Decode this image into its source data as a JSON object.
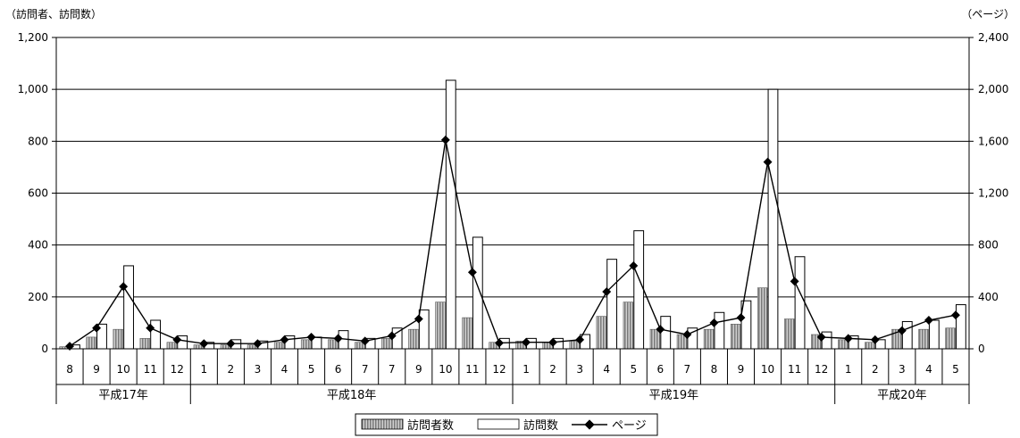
{
  "chart_data": {
    "type": "bar",
    "left_axis": {
      "label": "（訪問者、訪問数）",
      "ylim": [
        0,
        1200
      ],
      "ticks": [
        "0",
        "200",
        "400",
        "600",
        "800",
        "1,000",
        "1,200"
      ],
      "tick_values": [
        0,
        200,
        400,
        600,
        800,
        1000,
        1200
      ]
    },
    "right_axis": {
      "label": "（ページ）",
      "ylim": [
        0,
        2400
      ],
      "ticks": [
        "0",
        "400",
        "800",
        "1,200",
        "1,600",
        "2,000",
        "2,400"
      ],
      "tick_values": [
        0,
        400,
        800,
        1200,
        1600,
        2000,
        2400
      ]
    },
    "grid": true,
    "categories": [
      "8",
      "9",
      "10",
      "11",
      "12",
      "1",
      "2",
      "3",
      "4",
      "5",
      "6",
      "7",
      "7",
      "9",
      "10",
      "11",
      "12",
      "1",
      "2",
      "3",
      "4",
      "5",
      "6",
      "7",
      "8",
      "9",
      "10",
      "11",
      "12",
      "1",
      "2",
      "3",
      "4",
      "5"
    ],
    "groups": [
      {
        "label": "平成17年",
        "count": 5
      },
      {
        "label": "平成18年",
        "count": 12
      },
      {
        "label": "平成19年",
        "count": 12
      },
      {
        "label": "平成20年",
        "count": 5
      }
    ],
    "series": [
      {
        "name": "訪問者数",
        "kind": "bar",
        "axis": "left",
        "color": "#9a9a9a",
        "values": [
          8,
          45,
          75,
          40,
          25,
          15,
          15,
          15,
          25,
          35,
          35,
          25,
          40,
          75,
          180,
          120,
          25,
          30,
          25,
          30,
          125,
          180,
          75,
          55,
          75,
          95,
          235,
          115,
          55,
          35,
          25,
          75,
          75,
          80
        ]
      },
      {
        "name": "訪問数",
        "kind": "bar",
        "axis": "left",
        "color": "#ffffff",
        "values": [
          15,
          95,
          320,
          110,
          50,
          25,
          35,
          30,
          50,
          45,
          70,
          40,
          80,
          150,
          1035,
          430,
          40,
          40,
          40,
          55,
          345,
          455,
          125,
          80,
          140,
          185,
          1000,
          355,
          65,
          50,
          35,
          105,
          110,
          170
        ]
      },
      {
        "name": "ページ",
        "kind": "line",
        "axis": "right",
        "color": "#000000",
        "values": [
          20,
          160,
          480,
          160,
          70,
          40,
          40,
          40,
          70,
          90,
          80,
          60,
          100,
          230,
          1610,
          590,
          45,
          50,
          50,
          70,
          440,
          640,
          150,
          110,
          200,
          240,
          1440,
          520,
          90,
          80,
          70,
          140,
          220,
          260
        ]
      }
    ]
  }
}
